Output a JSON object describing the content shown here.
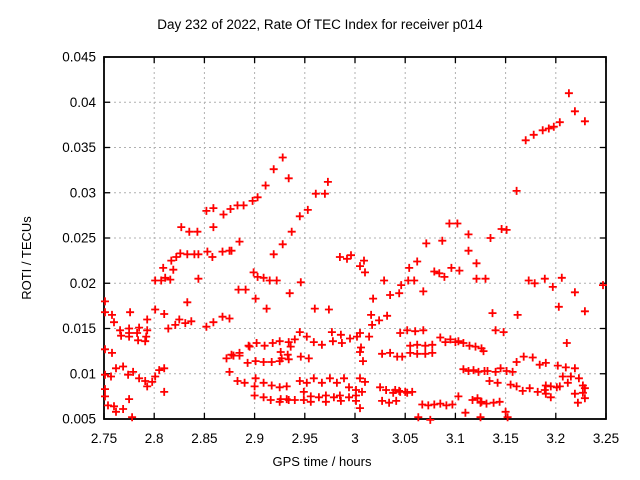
{
  "chart_data": {
    "type": "scatter",
    "title": "Day 232 of 2022, Rate Of TEC Index for receiver p014",
    "xlabel": "GPS time / hours",
    "ylabel": "ROTI / TECUs",
    "xlim": [
      2.75,
      3.25
    ],
    "ylim": [
      0.005,
      0.045
    ],
    "xtick_values": [
      2.75,
      2.8,
      2.85,
      2.9,
      2.95,
      3.0,
      3.05,
      3.1,
      3.15,
      3.2,
      3.25
    ],
    "xtick_labels": [
      "2.75",
      "2.8",
      "2.85",
      "2.9",
      "2.95",
      "3",
      "3.05",
      "3.1",
      "3.15",
      "3.2",
      "3.25"
    ],
    "ytick_values": [
      0.005,
      0.01,
      0.015,
      0.02,
      0.025,
      0.03,
      0.035,
      0.04,
      0.045
    ],
    "ytick_labels": [
      "0.005",
      "0.01",
      "0.015",
      "0.02",
      "0.025",
      "0.03",
      "0.035",
      "0.04",
      "0.045"
    ],
    "grid": true,
    "legend_position": "none",
    "marker_shape": "plus",
    "marker_color": "#ff0000",
    "grid_color": "#b0b0b0",
    "border_color": "#000000",
    "points": [
      [
        2.751,
        0.018
      ],
      [
        2.751,
        0.0168
      ],
      [
        2.758,
        0.0165
      ],
      [
        2.76,
        0.0157
      ],
      [
        2.751,
        0.0127
      ],
      [
        2.758,
        0.0123
      ],
      [
        2.751,
        0.0099
      ],
      [
        2.757,
        0.0097
      ],
      [
        2.751,
        0.0083
      ],
      [
        2.751,
        0.0075
      ],
      [
        2.754,
        0.0065
      ],
      [
        2.76,
        0.0064
      ],
      [
        2.762,
        0.0058
      ],
      [
        2.762,
        0.0106
      ],
      [
        2.766,
        0.0148
      ],
      [
        2.767,
        0.0142
      ],
      [
        2.769,
        0.0108
      ],
      [
        2.769,
        0.0061
      ],
      [
        2.774,
        0.0099
      ],
      [
        2.775,
        0.015
      ],
      [
        2.775,
        0.0145
      ],
      [
        2.775,
        0.0141
      ],
      [
        2.775,
        0.0072
      ],
      [
        2.776,
        0.0168
      ],
      [
        2.778,
        0.0052
      ],
      [
        2.779,
        0.0102
      ],
      [
        2.783,
        0.0145
      ],
      [
        2.784,
        0.0137
      ],
      [
        2.785,
        0.0151
      ],
      [
        2.785,
        0.0095
      ],
      [
        2.791,
        0.0136
      ],
      [
        2.791,
        0.0092
      ],
      [
        2.792,
        0.0141
      ],
      [
        2.793,
        0.016
      ],
      [
        2.793,
        0.0148
      ],
      [
        2.793,
        0.0086
      ],
      [
        2.798,
        0.0091
      ],
      [
        2.801,
        0.0171
      ],
      [
        2.801,
        0.0203
      ],
      [
        2.801,
        0.0097
      ],
      [
        2.805,
        0.0104
      ],
      [
        2.807,
        0.0203
      ],
      [
        2.809,
        0.0217
      ],
      [
        2.81,
        0.0166
      ],
      [
        2.81,
        0.0106
      ],
      [
        2.81,
        0.008
      ],
      [
        2.811,
        0.0206
      ],
      [
        2.814,
        0.015
      ],
      [
        2.816,
        0.0204
      ],
      [
        2.817,
        0.0225
      ],
      [
        2.819,
        0.0215
      ],
      [
        2.821,
        0.0154
      ],
      [
        2.822,
        0.0229
      ],
      [
        2.825,
        0.016
      ],
      [
        2.826,
        0.0233
      ],
      [
        2.827,
        0.0262
      ],
      [
        2.831,
        0.0156
      ],
      [
        2.833,
        0.0232
      ],
      [
        2.833,
        0.0179
      ],
      [
        2.835,
        0.0257
      ],
      [
        2.837,
        0.0158
      ],
      [
        2.84,
        0.0232
      ],
      [
        2.843,
        0.0257
      ],
      [
        2.844,
        0.0232
      ],
      [
        2.844,
        0.0205
      ],
      [
        2.852,
        0.028
      ],
      [
        2.852,
        0.0152
      ],
      [
        2.853,
        0.0235
      ],
      [
        2.858,
        0.0229
      ],
      [
        2.859,
        0.0283
      ],
      [
        2.859,
        0.0262
      ],
      [
        2.859,
        0.0157
      ],
      [
        2.868,
        0.0235
      ],
      [
        2.868,
        0.0163
      ],
      [
        2.869,
        0.0276
      ],
      [
        2.872,
        0.0117
      ],
      [
        2.875,
        0.0236
      ],
      [
        2.875,
        0.0161
      ],
      [
        2.875,
        0.0102
      ],
      [
        2.876,
        0.0282
      ],
      [
        2.877,
        0.0236
      ],
      [
        2.877,
        0.0121
      ],
      [
        2.879,
        0.012
      ],
      [
        2.883,
        0.0286
      ],
      [
        2.883,
        0.0092
      ],
      [
        2.884,
        0.0193
      ],
      [
        2.885,
        0.0246
      ],
      [
        2.885,
        0.0123
      ],
      [
        2.885,
        0.012
      ],
      [
        2.889,
        0.0286
      ],
      [
        2.89,
        0.009
      ],
      [
        2.891,
        0.0193
      ],
      [
        2.893,
        0.0112
      ],
      [
        2.894,
        0.0131
      ],
      [
        2.895,
        0.013
      ],
      [
        2.898,
        0.0291
      ],
      [
        2.899,
        0.0212
      ],
      [
        2.9,
        0.0086
      ],
      [
        2.9,
        0.0076
      ],
      [
        2.901,
        0.0183
      ],
      [
        2.901,
        0.0114
      ],
      [
        2.901,
        0.0095
      ],
      [
        2.902,
        0.0134
      ],
      [
        2.903,
        0.0295
      ],
      [
        2.903,
        0.0207
      ],
      [
        2.909,
        0.0206
      ],
      [
        2.909,
        0.0113
      ],
      [
        2.909,
        0.009
      ],
      [
        2.909,
        0.0074
      ],
      [
        2.91,
        0.0131
      ],
      [
        2.911,
        0.0308
      ],
      [
        2.912,
        0.0172
      ],
      [
        2.915,
        0.0203
      ],
      [
        2.916,
        0.0071
      ],
      [
        2.917,
        0.0113
      ],
      [
        2.917,
        0.0087
      ],
      [
        2.918,
        0.0134
      ],
      [
        2.919,
        0.0326
      ],
      [
        2.919,
        0.0232
      ],
      [
        2.922,
        0.0203
      ],
      [
        2.925,
        0.0136
      ],
      [
        2.925,
        0.0114
      ],
      [
        2.925,
        0.0085
      ],
      [
        2.925,
        0.0069
      ],
      [
        2.926,
        0.0124
      ],
      [
        2.926,
        0.0072
      ],
      [
        2.927,
        0.0117
      ],
      [
        2.928,
        0.0339
      ],
      [
        2.928,
        0.0243
      ],
      [
        2.932,
        0.0086
      ],
      [
        2.932,
        0.0072
      ],
      [
        2.933,
        0.0121
      ],
      [
        2.934,
        0.0316
      ],
      [
        2.934,
        0.0135
      ],
      [
        2.934,
        0.0116
      ],
      [
        2.934,
        0.0071
      ],
      [
        2.935,
        0.0189
      ],
      [
        2.936,
        0.013
      ],
      [
        2.937,
        0.0257
      ],
      [
        2.94,
        0.0138
      ],
      [
        2.94,
        0.0071
      ],
      [
        2.945,
        0.0274
      ],
      [
        2.945,
        0.0146
      ],
      [
        2.945,
        0.0092
      ],
      [
        2.946,
        0.0201
      ],
      [
        2.946,
        0.0119
      ],
      [
        2.949,
        0.008
      ],
      [
        2.949,
        0.0071
      ],
      [
        2.952,
        0.0141
      ],
      [
        2.952,
        0.009
      ],
      [
        2.953,
        0.0281
      ],
      [
        2.954,
        0.0117
      ],
      [
        2.956,
        0.0075
      ],
      [
        2.956,
        0.0069
      ],
      [
        2.959,
        0.0135
      ],
      [
        2.959,
        0.0095
      ],
      [
        2.96,
        0.0172
      ],
      [
        2.961,
        0.0299
      ],
      [
        2.964,
        0.0074
      ],
      [
        2.967,
        0.0132
      ],
      [
        2.967,
        0.009
      ],
      [
        2.97,
        0.0299
      ],
      [
        2.971,
        0.0076
      ],
      [
        2.971,
        0.0069
      ],
      [
        2.973,
        0.0312
      ],
      [
        2.974,
        0.0171
      ],
      [
        2.975,
        0.0095
      ],
      [
        2.977,
        0.0146
      ],
      [
        2.978,
        0.0136
      ],
      [
        2.979,
        0.0074
      ],
      [
        2.982,
        0.009
      ],
      [
        2.985,
        0.0229
      ],
      [
        2.985,
        0.0076
      ],
      [
        2.986,
        0.0143
      ],
      [
        2.986,
        0.007
      ],
      [
        2.987,
        0.0134
      ],
      [
        2.989,
        0.0095
      ],
      [
        2.992,
        0.0227
      ],
      [
        2.994,
        0.0085
      ],
      [
        2.994,
        0.0074
      ],
      [
        2.995,
        0.0139
      ],
      [
        2.996,
        0.0231
      ],
      [
        3.001,
        0.0082
      ],
      [
        3.001,
        0.0076
      ],
      [
        3.001,
        0.007
      ],
      [
        3.002,
        0.0141
      ],
      [
        3.005,
        0.0219
      ],
      [
        3.005,
        0.0145
      ],
      [
        3.005,
        0.0124
      ],
      [
        3.005,
        0.0095
      ],
      [
        3.005,
        0.0062
      ],
      [
        3.006,
        0.0129
      ],
      [
        3.007,
        0.008
      ],
      [
        3.008,
        0.0114
      ],
      [
        3.009,
        0.0225
      ],
      [
        3.01,
        0.0212
      ],
      [
        3.01,
        0.0091
      ],
      [
        3.014,
        0.0141
      ],
      [
        3.016,
        0.0165
      ],
      [
        3.017,
        0.0154
      ],
      [
        3.018,
        0.0183
      ],
      [
        3.024,
        0.0159
      ],
      [
        3.025,
        0.0085
      ],
      [
        3.027,
        0.0122
      ],
      [
        3.027,
        0.007
      ],
      [
        3.029,
        0.0203
      ],
      [
        3.031,
        0.0082
      ],
      [
        3.032,
        0.0164
      ],
      [
        3.034,
        0.0068
      ],
      [
        3.035,
        0.0187
      ],
      [
        3.035,
        0.0123
      ],
      [
        3.038,
        0.0079
      ],
      [
        3.04,
        0.0082
      ],
      [
        3.041,
        0.007
      ],
      [
        3.042,
        0.0119
      ],
      [
        3.044,
        0.0189
      ],
      [
        3.044,
        0.0081
      ],
      [
        3.045,
        0.0145
      ],
      [
        3.045,
        0.008
      ],
      [
        3.046,
        0.0198
      ],
      [
        3.047,
        0.0119
      ],
      [
        3.05,
        0.008
      ],
      [
        3.052,
        0.0148
      ],
      [
        3.052,
        0.0079
      ],
      [
        3.053,
        0.0203
      ],
      [
        3.054,
        0.0217
      ],
      [
        3.055,
        0.0131
      ],
      [
        3.055,
        0.0123
      ],
      [
        3.057,
        0.008
      ],
      [
        3.059,
        0.0203
      ],
      [
        3.06,
        0.0147
      ],
      [
        3.062,
        0.0224
      ],
      [
        3.062,
        0.0132
      ],
      [
        3.062,
        0.0122
      ],
      [
        3.063,
        0.0052
      ],
      [
        3.067,
        0.0066
      ],
      [
        3.068,
        0.0191
      ],
      [
        3.068,
        0.0148
      ],
      [
        3.07,
        0.0131
      ],
      [
        3.07,
        0.0122
      ],
      [
        3.071,
        0.0244
      ],
      [
        3.073,
        0.0065
      ],
      [
        3.075,
        0.0049
      ],
      [
        3.077,
        0.0132
      ],
      [
        3.077,
        0.0123
      ],
      [
        3.079,
        0.0213
      ],
      [
        3.079,
        0.0066
      ],
      [
        3.084,
        0.0211
      ],
      [
        3.085,
        0.014
      ],
      [
        3.085,
        0.0067
      ],
      [
        3.087,
        0.0247
      ],
      [
        3.089,
        0.0207
      ],
      [
        3.09,
        0.0135
      ],
      [
        3.091,
        0.0065
      ],
      [
        3.094,
        0.0266
      ],
      [
        3.095,
        0.0138
      ],
      [
        3.096,
        0.0217
      ],
      [
        3.097,
        0.0066
      ],
      [
        3.1,
        0.0135
      ],
      [
        3.102,
        0.0266
      ],
      [
        3.103,
        0.0136
      ],
      [
        3.103,
        0.0075
      ],
      [
        3.104,
        0.0214
      ],
      [
        3.108,
        0.0134
      ],
      [
        3.108,
        0.0105
      ],
      [
        3.11,
        0.0057
      ],
      [
        3.113,
        0.0254
      ],
      [
        3.113,
        0.0236
      ],
      [
        3.113,
        0.0103
      ],
      [
        3.114,
        0.0131
      ],
      [
        3.117,
        0.0071
      ],
      [
        3.118,
        0.0104
      ],
      [
        3.12,
        0.013
      ],
      [
        3.121,
        0.0222
      ],
      [
        3.121,
        0.0205
      ],
      [
        3.122,
        0.0073
      ],
      [
        3.123,
        0.0102
      ],
      [
        3.125,
        0.0068
      ],
      [
        3.125,
        0.0052
      ],
      [
        3.126,
        0.0128
      ],
      [
        3.126,
        0.0069
      ],
      [
        3.128,
        0.0125
      ],
      [
        3.129,
        0.0103
      ],
      [
        3.13,
        0.0205
      ],
      [
        3.131,
        0.0067
      ],
      [
        3.132,
        0.0103
      ],
      [
        3.134,
        0.0092
      ],
      [
        3.135,
        0.025
      ],
      [
        3.137,
        0.0167
      ],
      [
        3.138,
        0.0068
      ],
      [
        3.14,
        0.0148
      ],
      [
        3.14,
        0.0102
      ],
      [
        3.142,
        0.009
      ],
      [
        3.144,
        0.0069
      ],
      [
        3.145,
        0.0106
      ],
      [
        3.146,
        0.026
      ],
      [
        3.148,
        0.0146
      ],
      [
        3.15,
        0.0058
      ],
      [
        3.151,
        0.0259
      ],
      [
        3.151,
        0.0103
      ],
      [
        3.152,
        0.0052
      ],
      [
        3.155,
        0.0088
      ],
      [
        3.157,
        0.0102
      ],
      [
        3.161,
        0.0302
      ],
      [
        3.161,
        0.0113
      ],
      [
        3.161,
        0.0086
      ],
      [
        3.162,
        0.0165
      ],
      [
        3.167,
        0.0081
      ],
      [
        3.168,
        0.0119
      ],
      [
        3.17,
        0.0358
      ],
      [
        3.173,
        0.0203
      ],
      [
        3.174,
        0.0084
      ],
      [
        3.177,
        0.0118
      ],
      [
        3.178,
        0.0364
      ],
      [
        3.179,
        0.02
      ],
      [
        3.182,
        0.008
      ],
      [
        3.184,
        0.011
      ],
      [
        3.187,
        0.0369
      ],
      [
        3.189,
        0.0205
      ],
      [
        3.189,
        0.0082
      ],
      [
        3.19,
        0.0112
      ],
      [
        3.19,
        0.0087
      ],
      [
        3.19,
        0.0078
      ],
      [
        3.193,
        0.0371
      ],
      [
        3.195,
        0.0086
      ],
      [
        3.195,
        0.0074
      ],
      [
        3.197,
        0.0196
      ],
      [
        3.198,
        0.0373
      ],
      [
        3.201,
        0.0085
      ],
      [
        3.202,
        0.0109
      ],
      [
        3.203,
        0.0174
      ],
      [
        3.204,
        0.0378
      ],
      [
        3.204,
        0.0086
      ],
      [
        3.206,
        0.0206
      ],
      [
        3.207,
        0.0097
      ],
      [
        3.21,
        0.0107
      ],
      [
        3.211,
        0.0134
      ],
      [
        3.212,
        0.009
      ],
      [
        3.213,
        0.041
      ],
      [
        3.215,
        0.0097
      ],
      [
        3.219,
        0.039
      ],
      [
        3.219,
        0.019
      ],
      [
        3.219,
        0.0106
      ],
      [
        3.219,
        0.0078
      ],
      [
        3.222,
        0.0068
      ],
      [
        3.223,
        0.0095
      ],
      [
        3.227,
        0.0087
      ],
      [
        3.227,
        0.0079
      ],
      [
        3.229,
        0.0379
      ],
      [
        3.229,
        0.0169
      ],
      [
        3.229,
        0.0084
      ],
      [
        3.229,
        0.0073
      ],
      [
        3.247,
        0.0198
      ]
    ]
  }
}
